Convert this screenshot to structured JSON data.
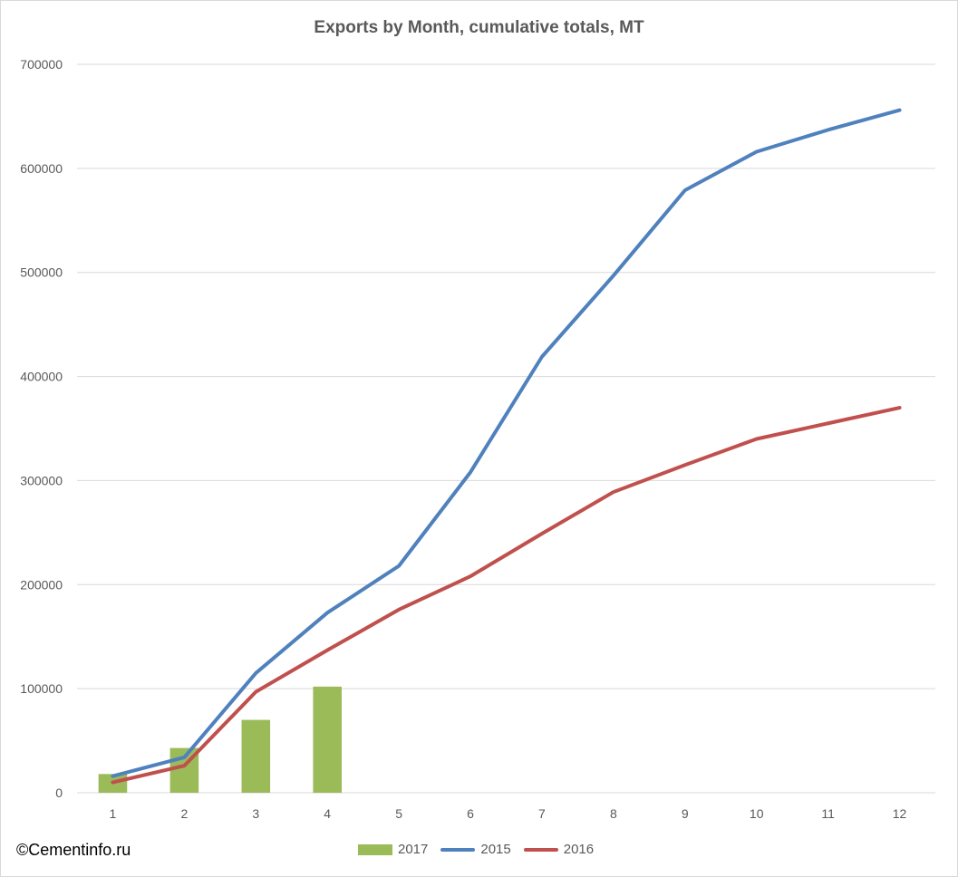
{
  "chart_data": {
    "type": "bar+line",
    "title": "Exports by Month, cumulative totals, MT",
    "xlabel": "",
    "ylabel": "",
    "ylim": [
      0,
      700000
    ],
    "categories": [
      "1",
      "2",
      "3",
      "4",
      "5",
      "6",
      "7",
      "8",
      "9",
      "10",
      "11",
      "12"
    ],
    "y_ticks": [
      "0",
      "100000",
      "200000",
      "300000",
      "400000",
      "500000",
      "600000",
      "700000"
    ],
    "grid": true,
    "legend_position": "bottom",
    "series": [
      {
        "name": "2017",
        "kind": "bar",
        "color": "#9bbb59",
        "values": [
          18000,
          43000,
          70000,
          102000,
          null,
          null,
          null,
          null,
          null,
          null,
          null,
          null
        ]
      },
      {
        "name": "2015",
        "kind": "line",
        "color": "#4f81bd",
        "values": [
          16000,
          34000,
          115000,
          173000,
          218000,
          308000,
          419000,
          497000,
          579000,
          616000,
          637000,
          656000
        ]
      },
      {
        "name": "2016",
        "kind": "line",
        "color": "#c0504d",
        "values": [
          10000,
          26000,
          97000,
          137000,
          176000,
          208000,
          249000,
          289000,
          315000,
          340000,
          355000,
          370000
        ]
      }
    ]
  },
  "footer": {
    "credit": "©Cementinfo.ru"
  }
}
